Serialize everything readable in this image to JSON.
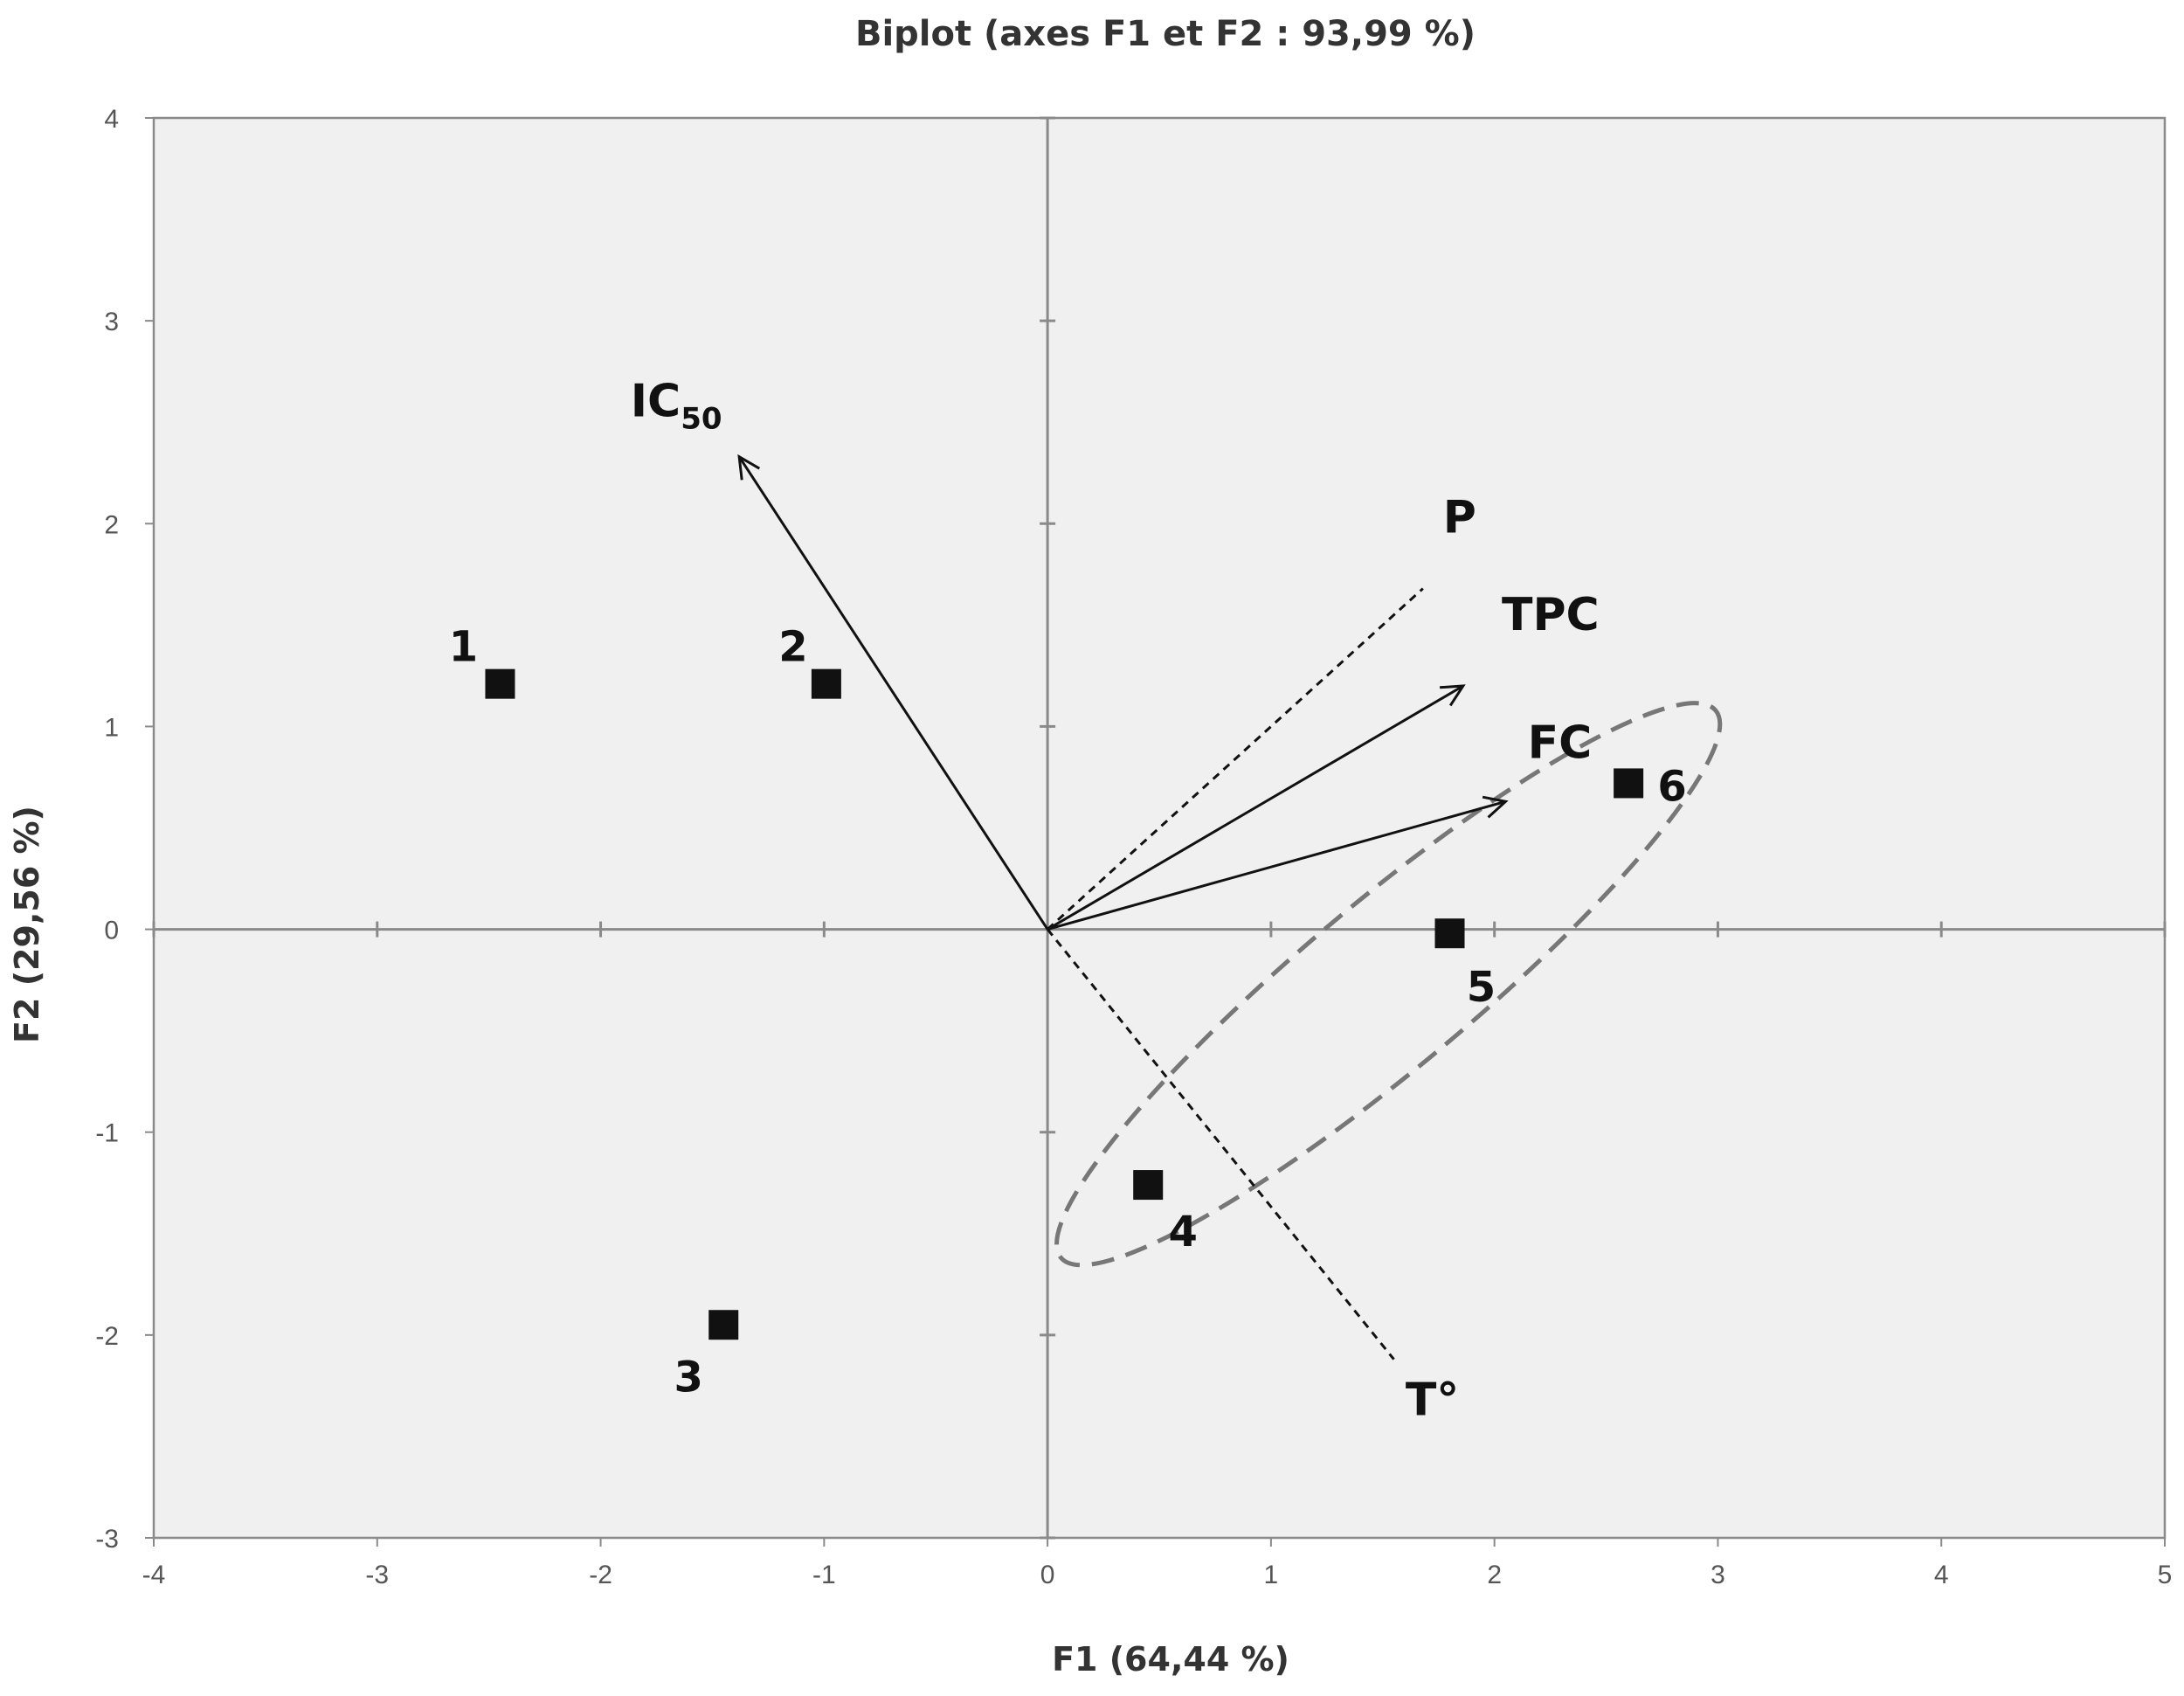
{
  "chart_data": {
    "type": "scatter",
    "subtype": "biplot",
    "title": "Biplot (axes F1 et F2 : 93,99 %)",
    "xlabel": "F1 (64,44 %)",
    "ylabel": "F2 (29,56 %)",
    "xlim": [
      -4,
      5
    ],
    "ylim": [
      -3,
      4
    ],
    "xticks": [
      "-4",
      "-3",
      "-2",
      "-1",
      "0",
      "1",
      "2",
      "3",
      "4",
      "5"
    ],
    "yticks": [
      "-3",
      "-2",
      "-1",
      "0",
      "1",
      "2",
      "3",
      "4"
    ],
    "grid": false,
    "plot_background": "#f0f0f0",
    "observations": [
      {
        "label": "1",
        "x": -2.45,
        "y": 1.21
      },
      {
        "label": "2",
        "x": -0.99,
        "y": 1.21
      },
      {
        "label": "3",
        "x": -1.45,
        "y": -1.95
      },
      {
        "label": "4",
        "x": 0.45,
        "y": -1.26
      },
      {
        "label": "5",
        "x": 1.8,
        "y": -0.02
      },
      {
        "label": "6",
        "x": 2.6,
        "y": 0.72
      }
    ],
    "variables": [
      {
        "label": "IC",
        "subscript": "50",
        "x": -1.38,
        "y": 2.33,
        "style": "arrow"
      },
      {
        "label": "P",
        "x": 1.68,
        "y": 1.68,
        "style": "dashed"
      },
      {
        "label": "TPC",
        "x": 1.86,
        "y": 1.2,
        "style": "arrow"
      },
      {
        "label": "FC",
        "x": 2.05,
        "y": 0.63,
        "style": "arrow"
      },
      {
        "label": "T°",
        "x": 1.55,
        "y": -2.12,
        "style": "dashed"
      }
    ],
    "ellipse": {
      "style": "dashed",
      "color": "#777777",
      "encloses": [
        "4",
        "5",
        "6"
      ]
    }
  }
}
